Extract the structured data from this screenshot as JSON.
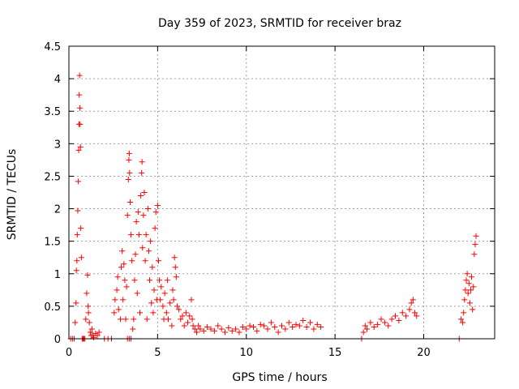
{
  "chart_data": {
    "type": "scatter",
    "title": "Day 359 of 2023, SRMTID for receiver braz",
    "xlabel": "GPS time / hours",
    "ylabel": "SRMTID / TECUs",
    "xlim": [
      0,
      24
    ],
    "ylim": [
      0,
      4.5
    ],
    "xticks": [
      0,
      5,
      10,
      15,
      20
    ],
    "xtick_labels": [
      "0",
      "5",
      "10",
      "15",
      "20"
    ],
    "yticks": [
      0,
      0.5,
      1,
      1.5,
      2,
      2.5,
      3,
      3.5,
      4,
      4.5
    ],
    "ytick_labels": [
      "0",
      "0.5",
      "1",
      "1.5",
      "2",
      "2.5",
      "3",
      "3.5",
      "4",
      "4.5"
    ],
    "grid": true,
    "marker": "+",
    "color": "#ff0000",
    "series": [
      {
        "name": "SRMTID",
        "points": [
          [
            0.1,
            0.0
          ],
          [
            0.2,
            0.0
          ],
          [
            0.3,
            0.0
          ],
          [
            0.35,
            0.25
          ],
          [
            0.4,
            0.55
          ],
          [
            0.42,
            1.05
          ],
          [
            0.45,
            1.2
          ],
          [
            0.47,
            1.6
          ],
          [
            0.5,
            1.97
          ],
          [
            0.52,
            2.42
          ],
          [
            0.55,
            2.9
          ],
          [
            0.57,
            3.3
          ],
          [
            0.58,
            3.75
          ],
          [
            0.6,
            4.05
          ],
          [
            0.62,
            3.55
          ],
          [
            0.63,
            3.3
          ],
          [
            0.65,
            2.95
          ],
          [
            0.67,
            1.7
          ],
          [
            0.7,
            1.25
          ],
          [
            0.75,
            0.0
          ],
          [
            0.8,
            0.0
          ],
          [
            0.85,
            0.0
          ],
          [
            0.9,
            0.0
          ],
          [
            0.95,
            0.3
          ],
          [
            1.0,
            0.7
          ],
          [
            1.05,
            0.98
          ],
          [
            1.08,
            0.5
          ],
          [
            1.1,
            0.4
          ],
          [
            1.15,
            0.25
          ],
          [
            1.2,
            0.1
          ],
          [
            1.25,
            0.05
          ],
          [
            1.3,
            0.15
          ],
          [
            1.35,
            0.05
          ],
          [
            1.4,
            0.02
          ],
          [
            1.5,
            0.08
          ],
          [
            1.6,
            0.05
          ],
          [
            1.7,
            0.1
          ],
          [
            2.0,
            0.0
          ],
          [
            2.2,
            0.0
          ],
          [
            2.4,
            0.0
          ],
          [
            2.55,
            0.4
          ],
          [
            2.6,
            0.6
          ],
          [
            2.7,
            0.75
          ],
          [
            2.75,
            0.95
          ],
          [
            2.8,
            0.45
          ],
          [
            2.9,
            0.3
          ],
          [
            2.95,
            1.1
          ],
          [
            3.0,
            1.35
          ],
          [
            3.05,
            0.6
          ],
          [
            3.1,
            1.15
          ],
          [
            3.15,
            0.9
          ],
          [
            3.2,
            0.3
          ],
          [
            3.25,
            0.8
          ],
          [
            3.3,
            1.9
          ],
          [
            3.35,
            2.45
          ],
          [
            3.38,
            2.75
          ],
          [
            3.4,
            2.85
          ],
          [
            3.42,
            2.55
          ],
          [
            3.45,
            2.1
          ],
          [
            3.5,
            1.6
          ],
          [
            3.55,
            1.2
          ],
          [
            3.3,
            0.0
          ],
          [
            3.4,
            0.0
          ],
          [
            3.5,
            0.0
          ],
          [
            3.6,
            0.15
          ],
          [
            3.65,
            0.3
          ],
          [
            3.7,
            0.9
          ],
          [
            3.75,
            1.3
          ],
          [
            3.8,
            1.8
          ],
          [
            3.85,
            0.7
          ],
          [
            3.9,
            1.95
          ],
          [
            3.95,
            1.6
          ],
          [
            4.0,
            0.4
          ],
          [
            4.05,
            2.2
          ],
          [
            4.1,
            2.55
          ],
          [
            4.12,
            2.72
          ],
          [
            4.15,
            1.4
          ],
          [
            4.2,
            1.9
          ],
          [
            4.25,
            2.25
          ],
          [
            4.3,
            1.2
          ],
          [
            4.35,
            1.6
          ],
          [
            4.4,
            0.3
          ],
          [
            4.45,
            2.0
          ],
          [
            4.5,
            1.35
          ],
          [
            4.55,
            0.9
          ],
          [
            4.6,
            1.5
          ],
          [
            4.65,
            0.55
          ],
          [
            4.7,
            1.1
          ],
          [
            4.75,
            0.4
          ],
          [
            4.8,
            0.75
          ],
          [
            4.85,
            1.7
          ],
          [
            4.9,
            1.95
          ],
          [
            4.95,
            0.6
          ],
          [
            5.0,
            2.05
          ],
          [
            5.05,
            1.2
          ],
          [
            5.1,
            0.9
          ],
          [
            5.15,
            0.6
          ],
          [
            5.2,
            0.8
          ],
          [
            5.3,
            0.5
          ],
          [
            5.35,
            0.3
          ],
          [
            5.4,
            0.7
          ],
          [
            5.5,
            0.4
          ],
          [
            5.55,
            0.9
          ],
          [
            5.6,
            0.3
          ],
          [
            5.7,
            0.55
          ],
          [
            5.8,
            0.2
          ],
          [
            5.85,
            0.75
          ],
          [
            5.9,
            0.6
          ],
          [
            5.95,
            1.25
          ],
          [
            6.0,
            1.1
          ],
          [
            6.05,
            0.95
          ],
          [
            6.1,
            0.5
          ],
          [
            6.2,
            0.45
          ],
          [
            6.3,
            0.3
          ],
          [
            6.4,
            0.35
          ],
          [
            6.5,
            0.2
          ],
          [
            6.6,
            0.4
          ],
          [
            6.7,
            0.25
          ],
          [
            6.8,
            0.35
          ],
          [
            6.9,
            0.6
          ],
          [
            6.95,
            0.3
          ],
          [
            7.0,
            0.2
          ],
          [
            7.1,
            0.15
          ],
          [
            7.2,
            0.1
          ],
          [
            7.3,
            0.2
          ],
          [
            7.4,
            0.15
          ],
          [
            7.6,
            0.12
          ],
          [
            7.8,
            0.18
          ],
          [
            8.0,
            0.15
          ],
          [
            8.2,
            0.12
          ],
          [
            8.4,
            0.2
          ],
          [
            8.6,
            0.15
          ],
          [
            8.8,
            0.1
          ],
          [
            9.0,
            0.17
          ],
          [
            9.2,
            0.12
          ],
          [
            9.4,
            0.15
          ],
          [
            9.6,
            0.1
          ],
          [
            9.8,
            0.18
          ],
          [
            10.0,
            0.15
          ],
          [
            10.2,
            0.2
          ],
          [
            10.4,
            0.18
          ],
          [
            10.6,
            0.12
          ],
          [
            10.8,
            0.22
          ],
          [
            11.0,
            0.2
          ],
          [
            11.2,
            0.15
          ],
          [
            11.4,
            0.25
          ],
          [
            11.6,
            0.18
          ],
          [
            11.8,
            0.1
          ],
          [
            12.0,
            0.2
          ],
          [
            12.2,
            0.15
          ],
          [
            12.4,
            0.25
          ],
          [
            12.6,
            0.18
          ],
          [
            12.8,
            0.22
          ],
          [
            13.0,
            0.2
          ],
          [
            13.2,
            0.28
          ],
          [
            13.4,
            0.18
          ],
          [
            13.6,
            0.25
          ],
          [
            13.8,
            0.15
          ],
          [
            14.0,
            0.22
          ],
          [
            14.2,
            0.18
          ],
          [
            16.5,
            0.0
          ],
          [
            16.6,
            0.1
          ],
          [
            16.7,
            0.2
          ],
          [
            16.8,
            0.15
          ],
          [
            17.0,
            0.25
          ],
          [
            17.2,
            0.18
          ],
          [
            17.4,
            0.22
          ],
          [
            17.6,
            0.3
          ],
          [
            17.8,
            0.25
          ],
          [
            18.0,
            0.2
          ],
          [
            18.2,
            0.3
          ],
          [
            18.4,
            0.35
          ],
          [
            18.6,
            0.28
          ],
          [
            18.8,
            0.4
          ],
          [
            19.0,
            0.35
          ],
          [
            19.2,
            0.45
          ],
          [
            19.3,
            0.55
          ],
          [
            19.4,
            0.6
          ],
          [
            19.5,
            0.4
          ],
          [
            19.6,
            0.35
          ],
          [
            22.0,
            0.0
          ],
          [
            22.1,
            0.3
          ],
          [
            22.2,
            0.25
          ],
          [
            22.25,
            0.4
          ],
          [
            22.3,
            0.6
          ],
          [
            22.35,
            0.75
          ],
          [
            22.4,
            0.9
          ],
          [
            22.45,
            1.0
          ],
          [
            22.5,
            0.7
          ],
          [
            22.55,
            0.85
          ],
          [
            22.6,
            0.55
          ],
          [
            22.65,
            0.75
          ],
          [
            22.7,
            0.95
          ],
          [
            22.75,
            0.45
          ],
          [
            22.8,
            0.8
          ],
          [
            22.85,
            1.3
          ],
          [
            22.9,
            1.45
          ],
          [
            22.95,
            1.58
          ]
        ]
      }
    ]
  }
}
